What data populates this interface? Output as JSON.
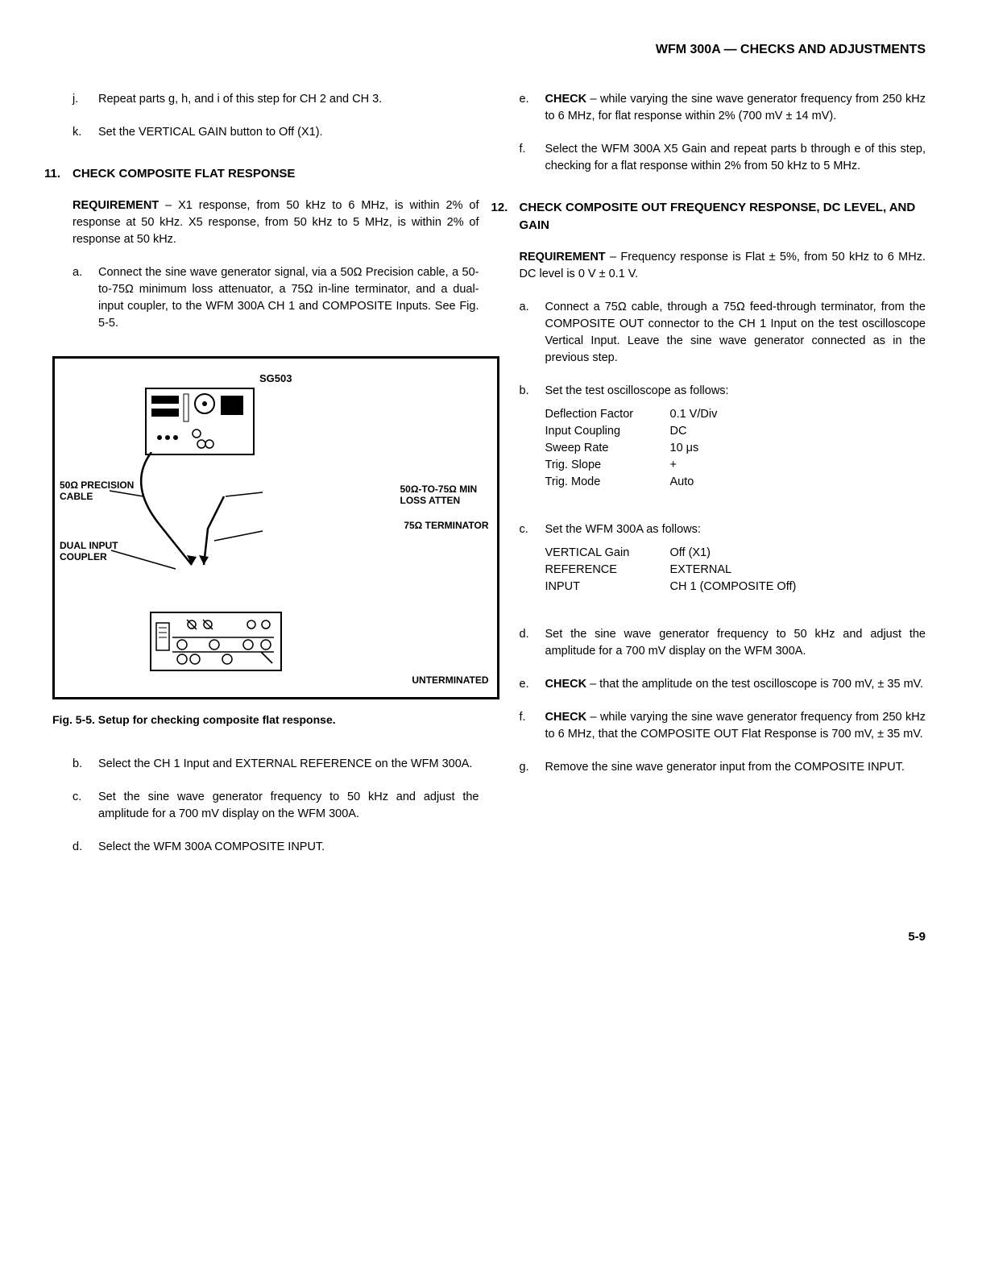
{
  "header": "WFM 300A — CHECKS AND ADJUSTMENTS",
  "left": {
    "j": "Repeat parts g, h, and i of this step for CH 2 and CH 3.",
    "k": "Set the VERTICAL GAIN button to Off (X1).",
    "s11_num": "11.",
    "s11_title": "CHECK COMPOSITE FLAT RESPONSE",
    "s11_req_label": "REQUIREMENT",
    "s11_req": " – X1 response, from 50 kHz to 6 MHz, is within 2% of response at 50 kHz.  X5 response, from 50 kHz to 5 MHz, is within 2% of response at 50 kHz.",
    "s11_a": "Connect the sine wave generator signal, via a 50Ω Precision cable, a 50-to-75Ω minimum loss attenuator, a 75Ω in-line terminator, and a dual-input coupler, to the WFM 300A CH 1 and COMPOSITE Inputs. See Fig. 5-5.",
    "fig_sg503": "SG503",
    "fig_cable": "50Ω PRECISION CABLE",
    "fig_atten": "50Ω-TO-75Ω MIN LOSS ATTEN",
    "fig_term": "75Ω TERMINATOR",
    "fig_coupler": "DUAL INPUT COUPLER",
    "fig_unterm": "UNTERMINATED",
    "fig_caption": "Fig. 5-5.  Setup for checking composite flat response.",
    "s11_b": "Select the CH 1 Input and EXTERNAL REFERENCE on the WFM 300A.",
    "s11_c": "Set the sine wave generator frequency to 50 kHz and adjust the amplitude for a 700 mV display on the WFM 300A.",
    "s11_d": "Select the WFM 300A COMPOSITE INPUT."
  },
  "right": {
    "s11_e_label": "CHECK",
    "s11_e": " – while varying the sine wave generator frequency from 250 kHz to 6 MHz, for flat response within 2% (700 mV  ±  14 mV).",
    "s11_f": "Select the WFM 300A X5 Gain and repeat parts b through e of this step, checking for a flat response within 2% from 50 kHz to 5 MHz.",
    "s12_num": "12.",
    "s12_title": "CHECK COMPOSITE OUT FREQUENCY RESPONSE, DC LEVEL, AND GAIN",
    "s12_req_label": "REQUIREMENT",
    "s12_req": " – Frequency response is Flat ± 5%, from 50 kHz to 6 MHz.  DC level is 0 V ± 0.1 V.",
    "s12_a": "Connect a 75Ω cable, through a 75Ω feed-through terminator, from the COMPOSITE OUT connector to the CH 1 Input on the test oscilloscope Vertical Input.  Leave the sine wave generator connected as in the previous step.",
    "s12_b": "Set the test oscilloscope as follows:",
    "osc": [
      [
        "Deflection Factor",
        "0.1  V/Div"
      ],
      [
        "Input Coupling",
        "DC"
      ],
      [
        "Sweep Rate",
        "10 μs"
      ],
      [
        "Trig. Slope",
        "+"
      ],
      [
        "Trig. Mode",
        "Auto"
      ]
    ],
    "s12_c": "Set the WFM 300A as follows:",
    "wfm": [
      [
        "VERTICAL Gain",
        "Off (X1)"
      ],
      [
        "REFERENCE",
        "EXTERNAL"
      ],
      [
        "INPUT",
        "CH 1 (COMPOSITE Off)"
      ]
    ],
    "s12_d": "Set the sine wave generator frequency to 50 kHz and adjust the amplitude for a 700 mV display on the WFM 300A.",
    "s12_e_label": "CHECK",
    "s12_e": " – that the amplitude on the test oscilloscope is 700 mV,  ± 35 mV.",
    "s12_f_label": "CHECK",
    "s12_f": " – while varying the sine wave generator frequency from 250 kHz to 6 MHz, that the COMPOSITE OUT Flat Response is 700 mV,  ± 35 mV.",
    "s12_g": "Remove the sine wave generator input from the COMPOSITE INPUT."
  },
  "pagenum": "5-9"
}
